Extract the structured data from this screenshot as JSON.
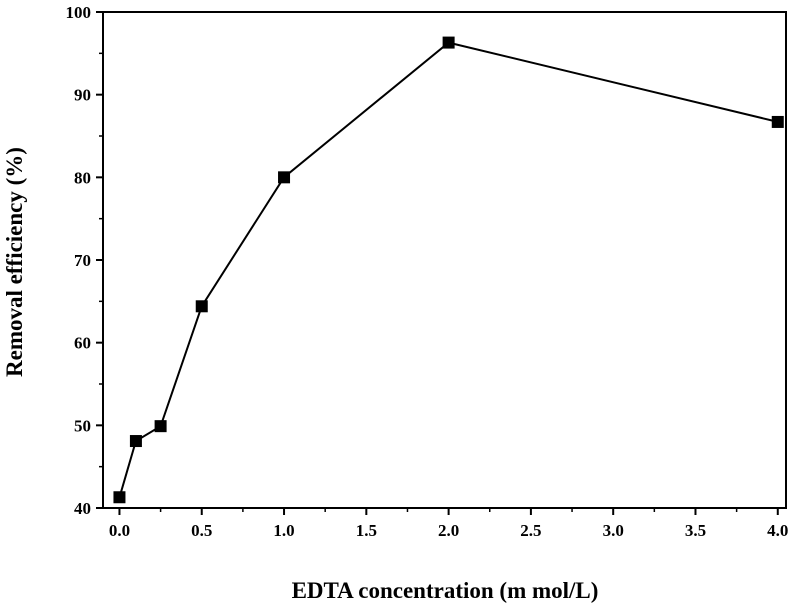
{
  "chart_data": {
    "type": "line",
    "title": "",
    "xlabel": "EDTA concentration (m mol/L)",
    "ylabel": "Removal efficiency (%)",
    "xlim": [
      -0.1,
      4.05
    ],
    "ylim": [
      40,
      100
    ],
    "xticks": [
      0.0,
      0.5,
      1.0,
      1.5,
      2.0,
      2.5,
      3.0,
      3.5,
      4.0
    ],
    "xtick_labels": [
      "0.0",
      "0.5",
      "1.0",
      "1.5",
      "2.0",
      "2.5",
      "3.0",
      "3.5",
      "4.0"
    ],
    "yticks": [
      40,
      50,
      60,
      70,
      80,
      90,
      100
    ],
    "ytick_labels": [
      "40",
      "50",
      "60",
      "70",
      "80",
      "90",
      "100"
    ],
    "grid": false,
    "legend": "none",
    "colors": {
      "line": "#000000",
      "marker": "#000000",
      "axis": "#000000"
    },
    "series": [
      {
        "marker": "square",
        "x": [
          0.0,
          0.1,
          0.25,
          0.5,
          1.0,
          2.0,
          4.0
        ],
        "y": [
          41.3,
          48.1,
          49.9,
          64.4,
          80.0,
          96.3,
          86.7
        ]
      }
    ]
  }
}
